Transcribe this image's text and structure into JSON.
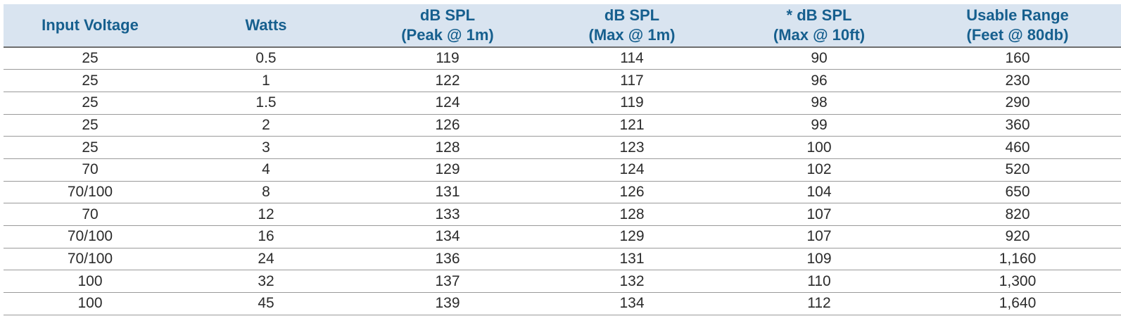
{
  "table": {
    "headers": [
      {
        "lines": [
          "Input Voltage"
        ]
      },
      {
        "lines": [
          "Watts"
        ]
      },
      {
        "lines": [
          "dB SPL",
          "(Peak @ 1m)"
        ]
      },
      {
        "lines": [
          "dB SPL",
          "(Max @ 1m)"
        ]
      },
      {
        "lines": [
          "* dB SPL",
          "(Max @ 10ft)"
        ]
      },
      {
        "lines": [
          "Usable Range",
          "(Feet @ 80db)"
        ]
      }
    ],
    "rows": [
      [
        "25",
        "0.5",
        "119",
        "114",
        "90",
        "160"
      ],
      [
        "25",
        "1",
        "122",
        "117",
        "96",
        "230"
      ],
      [
        "25",
        "1.5",
        "124",
        "119",
        "98",
        "290"
      ],
      [
        "25",
        "2",
        "126",
        "121",
        "99",
        "360"
      ],
      [
        "25",
        "3",
        "128",
        "123",
        "100",
        "460"
      ],
      [
        "70",
        "4",
        "129",
        "124",
        "102",
        "520"
      ],
      [
        "70/100",
        "8",
        "131",
        "126",
        "104",
        "650"
      ],
      [
        "70",
        "12",
        "133",
        "128",
        "107",
        "820"
      ],
      [
        "70/100",
        "16",
        "134",
        "129",
        "107",
        "920"
      ],
      [
        "70/100",
        "24",
        "136",
        "131",
        "109",
        "1,160"
      ],
      [
        "100",
        "32",
        "137",
        "132",
        "110",
        "1,300"
      ],
      [
        "100",
        "45",
        "139",
        "134",
        "112",
        "1,640"
      ]
    ]
  },
  "colors": {
    "header_background": "#d9e4f0",
    "header_text": "#165f8e",
    "body_text": "#2b2b2b"
  }
}
